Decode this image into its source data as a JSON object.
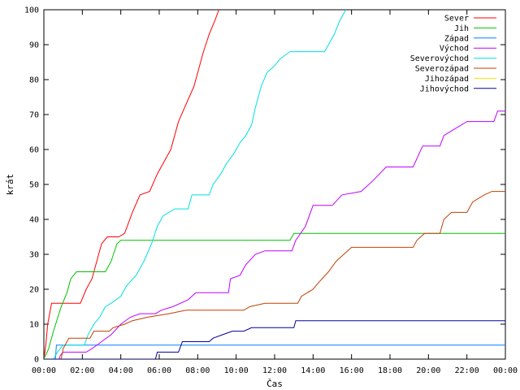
{
  "chart_data": {
    "type": "line",
    "title": "",
    "xlabel": "Čas",
    "ylabel": "krát",
    "xlim": [
      0,
      24
    ],
    "ylim": [
      0,
      100
    ],
    "x_ticks": [
      {
        "value": 0,
        "label": "00:00"
      },
      {
        "value": 2,
        "label": "02:00"
      },
      {
        "value": 4,
        "label": "04:00"
      },
      {
        "value": 6,
        "label": "06:00"
      },
      {
        "value": 8,
        "label": "08:00"
      },
      {
        "value": 10,
        "label": "10:00"
      },
      {
        "value": 12,
        "label": "12:00"
      },
      {
        "value": 14,
        "label": "14:00"
      },
      {
        "value": 16,
        "label": "16:00"
      },
      {
        "value": 18,
        "label": "18:00"
      },
      {
        "value": 20,
        "label": "20:00"
      },
      {
        "value": 22,
        "label": "22:00"
      },
      {
        "value": 24,
        "label": "00:00"
      }
    ],
    "y_ticks": [
      {
        "value": 0,
        "label": "0"
      },
      {
        "value": 10,
        "label": "10"
      },
      {
        "value": 20,
        "label": "20"
      },
      {
        "value": 30,
        "label": "30"
      },
      {
        "value": 40,
        "label": "40"
      },
      {
        "value": 50,
        "label": "50"
      },
      {
        "value": 60,
        "label": "60"
      },
      {
        "value": 70,
        "label": "70"
      },
      {
        "value": 80,
        "label": "80"
      },
      {
        "value": 90,
        "label": "90"
      },
      {
        "value": 100,
        "label": "100"
      }
    ],
    "grid": false,
    "legend_position": "top-right",
    "series": [
      {
        "name": "Sever",
        "color": "#ff0000",
        "points": [
          [
            0,
            0
          ],
          [
            0.1,
            4
          ],
          [
            0.2,
            10
          ],
          [
            0.4,
            16
          ],
          [
            0.7,
            16
          ],
          [
            1.5,
            16
          ],
          [
            1.9,
            16
          ],
          [
            2.2,
            20
          ],
          [
            2.5,
            23
          ],
          [
            2.8,
            29
          ],
          [
            3.0,
            33
          ],
          [
            3.3,
            35
          ],
          [
            3.9,
            35
          ],
          [
            4.2,
            36
          ],
          [
            4.6,
            42
          ],
          [
            5.0,
            47
          ],
          [
            5.5,
            48
          ],
          [
            5.9,
            53
          ],
          [
            6.3,
            57
          ],
          [
            6.6,
            60
          ],
          [
            7.0,
            68
          ],
          [
            7.4,
            73
          ],
          [
            7.8,
            78
          ],
          [
            8.1,
            84
          ],
          [
            8.3,
            88
          ],
          [
            8.6,
            93
          ],
          [
            8.9,
            97
          ],
          [
            9.1,
            100
          ]
        ]
      },
      {
        "name": "Jih",
        "color": "#00c000",
        "points": [
          [
            0,
            0
          ],
          [
            0.25,
            3
          ],
          [
            0.5,
            8
          ],
          [
            0.9,
            15
          ],
          [
            1.2,
            19
          ],
          [
            1.4,
            23
          ],
          [
            1.7,
            25
          ],
          [
            3.2,
            25
          ],
          [
            3.5,
            28
          ],
          [
            3.8,
            33
          ],
          [
            4.0,
            34
          ],
          [
            12.8,
            34
          ],
          [
            13.0,
            36
          ],
          [
            24,
            36
          ]
        ]
      },
      {
        "name": "Západ",
        "color": "#0080ff",
        "points": [
          [
            0,
            0
          ],
          [
            0.6,
            0
          ],
          [
            0.65,
            4
          ],
          [
            24,
            4
          ]
        ]
      },
      {
        "name": "Východ",
        "color": "#c000ff",
        "points": [
          [
            0,
            0
          ],
          [
            0.8,
            0
          ],
          [
            0.85,
            1
          ],
          [
            1.0,
            2
          ],
          [
            2.2,
            2
          ],
          [
            2.5,
            3
          ],
          [
            3.0,
            5
          ],
          [
            3.5,
            7
          ],
          [
            4.0,
            10
          ],
          [
            4.5,
            12
          ],
          [
            5.0,
            13
          ],
          [
            5.8,
            13
          ],
          [
            6.1,
            14
          ],
          [
            6.7,
            15
          ],
          [
            7.5,
            17
          ],
          [
            7.9,
            19
          ],
          [
            9.6,
            19
          ],
          [
            9.7,
            23
          ],
          [
            10.2,
            24
          ],
          [
            10.5,
            27
          ],
          [
            11.0,
            30
          ],
          [
            11.5,
            31
          ],
          [
            12.9,
            31
          ],
          [
            13.1,
            34
          ],
          [
            13.6,
            38
          ],
          [
            14.0,
            44
          ],
          [
            15.0,
            44
          ],
          [
            15.5,
            47
          ],
          [
            16.5,
            48
          ],
          [
            17.1,
            51
          ],
          [
            17.8,
            55
          ],
          [
            19.2,
            55
          ],
          [
            19.7,
            61
          ],
          [
            20.6,
            61
          ],
          [
            20.8,
            64
          ],
          [
            21.4,
            66
          ],
          [
            22.0,
            68
          ],
          [
            23.4,
            68
          ],
          [
            23.6,
            71
          ],
          [
            24,
            71
          ]
        ]
      },
      {
        "name": "Severovýchod",
        "color": "#00e0e0",
        "points": [
          [
            0,
            0
          ],
          [
            0.5,
            0
          ],
          [
            0.7,
            2
          ],
          [
            1.0,
            4
          ],
          [
            2.1,
            4
          ],
          [
            2.3,
            7
          ],
          [
            2.6,
            10
          ],
          [
            2.9,
            12
          ],
          [
            3.2,
            15
          ],
          [
            3.5,
            16
          ],
          [
            4.0,
            18
          ],
          [
            4.3,
            21
          ],
          [
            4.8,
            24
          ],
          [
            5.2,
            28
          ],
          [
            5.6,
            33
          ],
          [
            5.9,
            38
          ],
          [
            6.2,
            41
          ],
          [
            6.8,
            43
          ],
          [
            7.5,
            43
          ],
          [
            7.7,
            47
          ],
          [
            8.6,
            47
          ],
          [
            8.8,
            50
          ],
          [
            9.2,
            53
          ],
          [
            9.5,
            56
          ],
          [
            9.9,
            59
          ],
          [
            10.2,
            62
          ],
          [
            10.5,
            64
          ],
          [
            10.8,
            67
          ],
          [
            11.0,
            72
          ],
          [
            11.3,
            78
          ],
          [
            11.6,
            82
          ],
          [
            12.0,
            84
          ],
          [
            12.3,
            86
          ],
          [
            12.8,
            88
          ],
          [
            14.6,
            88
          ],
          [
            14.8,
            90
          ],
          [
            15.1,
            93
          ],
          [
            15.4,
            97
          ],
          [
            15.7,
            100
          ]
        ]
      },
      {
        "name": "Severozápad",
        "color": "#c04000",
        "points": [
          [
            0,
            0
          ],
          [
            0.9,
            0
          ],
          [
            1.0,
            3
          ],
          [
            1.3,
            6
          ],
          [
            2.4,
            6
          ],
          [
            2.6,
            8
          ],
          [
            3.4,
            8
          ],
          [
            3.6,
            9
          ],
          [
            4.2,
            10
          ],
          [
            4.6,
            11
          ],
          [
            5.4,
            12
          ],
          [
            6.5,
            13
          ],
          [
            7.4,
            14
          ],
          [
            10.4,
            14
          ],
          [
            10.7,
            15
          ],
          [
            11.5,
            16
          ],
          [
            13.2,
            16
          ],
          [
            13.4,
            18
          ],
          [
            14.0,
            20
          ],
          [
            14.3,
            22
          ],
          [
            14.8,
            25
          ],
          [
            15.2,
            28
          ],
          [
            15.6,
            30
          ],
          [
            16.0,
            32
          ],
          [
            19.2,
            32
          ],
          [
            19.4,
            34
          ],
          [
            19.8,
            36
          ],
          [
            20.6,
            36
          ],
          [
            20.8,
            40
          ],
          [
            21.2,
            42
          ],
          [
            22.0,
            42
          ],
          [
            22.3,
            45
          ],
          [
            22.9,
            47
          ],
          [
            23.3,
            48
          ],
          [
            24,
            48
          ]
        ]
      },
      {
        "name": "Jihozápad",
        "color": "#ffe000",
        "points": [
          [
            0,
            0
          ],
          [
            0.05,
            0
          ]
        ]
      },
      {
        "name": "Jihovýchod",
        "color": "#0000a0",
        "points": [
          [
            0,
            0
          ],
          [
            5.8,
            0
          ],
          [
            5.9,
            2
          ],
          [
            7.0,
            2
          ],
          [
            7.2,
            5
          ],
          [
            8.6,
            5
          ],
          [
            8.8,
            6
          ],
          [
            9.3,
            7
          ],
          [
            9.8,
            8
          ],
          [
            10.4,
            8
          ],
          [
            10.8,
            9
          ],
          [
            13.0,
            9
          ],
          [
            13.1,
            11
          ],
          [
            24,
            11
          ]
        ]
      }
    ]
  }
}
